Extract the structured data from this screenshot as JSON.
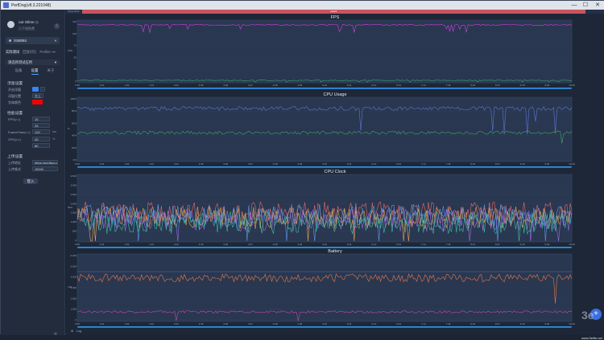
{
  "window": {
    "title": "PerfDog(v8.3.221048)",
    "minimize": "—",
    "maximize": "☐",
    "close": "✕"
  },
  "sidebar": {
    "user": {
      "name": "cat Slime ◇",
      "status": "已下线免费"
    },
    "device": "XS8084",
    "tabs": [
      "实际测试",
      "回放对比",
      "Profiler ▪▪▪"
    ],
    "app_select": "请选择测试应用",
    "subtabs": [
      "设备",
      "设置",
      "关于"
    ],
    "sections": {
      "float": {
        "title": "浮窗设置",
        "rows": [
          {
            "label": "开启浮窗"
          },
          {
            "label": "浮窗位置",
            "value": "左上"
          },
          {
            "label": "字体颜色"
          }
        ]
      },
      "perf": {
        "title": "性能设置",
        "rows": [
          {
            "label": "FPS(>=)",
            "value": "10"
          },
          {
            "label": "",
            "value": "25"
          },
          {
            "label": "FrameTime(>=)",
            "value": "100",
            "unit": "ms"
          },
          {
            "label": "CPU(>=)",
            "value": "40",
            "unit": "%"
          },
          {
            "label": "",
            "value": "80"
          }
        ]
      },
      "upload": {
        "title": "上传设置",
        "rows": [
          {
            "label": "上传地址",
            "value": "https://perfdog.q"
          },
          {
            "label": "上传格式",
            "value": "JSON"
          }
        ]
      }
    },
    "login_button": "登入",
    "collapse_icon": "«"
  },
  "main": {
    "top_left_label": "ScreenOut",
    "top_red_label": "label1",
    "panels": [
      {
        "title": "FPS",
        "y_ticks": [
          "125",
          "100",
          "75",
          "50",
          "25",
          "0"
        ],
        "y_unit": "FPS"
      },
      {
        "title": "CPU Usage",
        "y_ticks": [
          "100%",
          "80%",
          "60%",
          "40%",
          "20%",
          "0%"
        ],
        "y_unit": "%"
      },
      {
        "title": "CPU Clock",
        "y_ticks": [
          "3,500",
          "3,000",
          "2,500",
          "2,000",
          "1,500",
          "1,000",
          "500",
          "0"
        ],
        "y_unit": "MHz"
      },
      {
        "title": "Battery",
        "y_ticks": [
          "6,000",
          "5,000",
          "4,000",
          "3,000",
          "2,000",
          "1,000",
          "0"
        ],
        "y_unit": "mW"
      }
    ],
    "x_ticks": [
      "0:00",
      "0:31",
      "1:02",
      "1:33",
      "2:04",
      "2:35",
      "3:06",
      "3:37",
      "4:08",
      "4:39",
      "5:10",
      "5:41",
      "6:12",
      "6:43",
      "7:14",
      "7:45",
      "8:16",
      "8:47",
      "9:18",
      "9:49",
      "10:20"
    ],
    "bottom_label": "Log",
    "watermark": "3e",
    "watermark_url": "www.3elife.net"
  },
  "colors": {
    "fps": "#d23ee6",
    "cpu_total": "#5a76d6",
    "cpu_app": "#38a870",
    "red": "#f10000",
    "accent": "#2f9af0"
  }
}
